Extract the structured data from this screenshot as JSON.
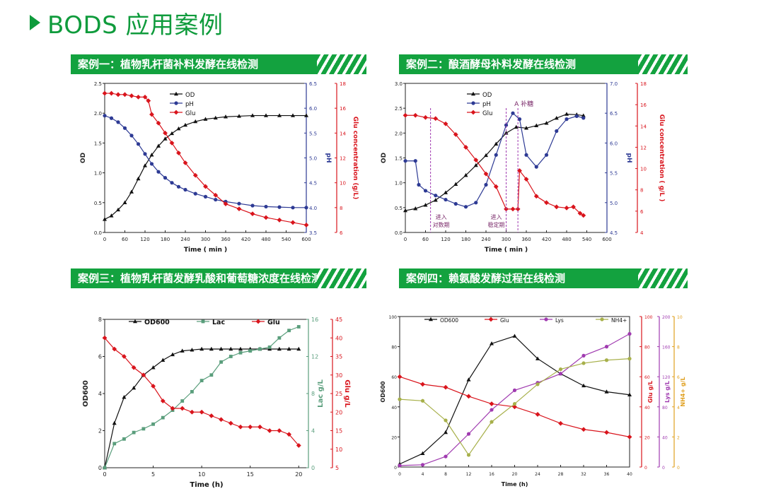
{
  "page_title": "BODS 应用案例",
  "section_titles": [
    "案例一：植物乳杆菌补料发酵在线检测",
    "案例二：酿酒酵母补料发酵在线检测",
    "案例三：植物乳杆菌发酵乳酸和葡萄糖浓度在线检测",
    "案例四：赖氨酸发酵过程在线检测"
  ],
  "colors": {
    "accent": "#13a23f",
    "black": "#111111",
    "blue": "#2d3a94",
    "red": "#d9141c",
    "teal": "#5a9e7c",
    "purple": "#a03bb0",
    "olive": "#a7b04a",
    "orange": "#e0a020"
  },
  "chart_data": [
    {
      "type": "line",
      "title": "案例一：植物乳杆菌补料发酵在线检测",
      "xlabel": "Time ( min )",
      "x_ticks": [
        "0",
        "60",
        "120",
        "180",
        "240",
        "300",
        "360",
        "420",
        "480",
        "540",
        "600"
      ],
      "xlim": [
        0,
        600
      ],
      "axes": [
        {
          "label": "OD",
          "ylim": [
            0,
            2.5
          ],
          "ticks": [
            "0.0",
            "0.5",
            "1.0",
            "1.5",
            "2.0",
            "2.5"
          ]
        },
        {
          "label": "pH",
          "ylim": [
            3.5,
            6.5
          ],
          "ticks": [
            "3.5",
            "4.0",
            "4.5",
            "5.0",
            "5.5",
            "6.0",
            "6.5"
          ]
        },
        {
          "label": "Glu concentration (g/L)",
          "ylim": [
            6,
            18
          ],
          "ticks": [
            "6",
            "8",
            "10",
            "12",
            "14",
            "16",
            "18"
          ]
        }
      ],
      "legend": [
        "OD",
        "pH",
        "Glu"
      ],
      "series": [
        {
          "name": "OD",
          "axis": 0,
          "x": [
            0,
            20,
            40,
            60,
            80,
            100,
            120,
            140,
            160,
            180,
            200,
            220,
            240,
            270,
            300,
            330,
            360,
            400,
            440,
            480,
            520,
            560,
            600
          ],
          "values": [
            0.22,
            0.28,
            0.38,
            0.5,
            0.68,
            0.9,
            1.12,
            1.3,
            1.45,
            1.57,
            1.66,
            1.74,
            1.8,
            1.86,
            1.9,
            1.92,
            1.94,
            1.95,
            1.96,
            1.96,
            1.96,
            1.96,
            1.96
          ]
        },
        {
          "name": "pH",
          "axis": 1,
          "x": [
            0,
            20,
            40,
            60,
            80,
            100,
            120,
            140,
            160,
            180,
            200,
            220,
            240,
            270,
            300,
            330,
            360,
            400,
            440,
            480,
            520,
            560,
            600
          ],
          "values": [
            5.85,
            5.8,
            5.72,
            5.6,
            5.45,
            5.28,
            5.08,
            4.88,
            4.72,
            4.6,
            4.5,
            4.42,
            4.36,
            4.28,
            4.22,
            4.16,
            4.12,
            4.08,
            4.04,
            4.02,
            4.01,
            4.0,
            4.0
          ]
        },
        {
          "name": "Glu",
          "axis": 2,
          "x": [
            0,
            20,
            40,
            60,
            80,
            100,
            120,
            130,
            140,
            160,
            180,
            200,
            220,
            240,
            270,
            300,
            330,
            360,
            400,
            440,
            480,
            520,
            560,
            600
          ],
          "values": [
            17.2,
            17.2,
            17.1,
            17.1,
            17.0,
            16.9,
            16.9,
            16.6,
            15.5,
            14.8,
            14.0,
            13.2,
            12.4,
            11.6,
            10.6,
            9.7,
            9.0,
            8.3,
            7.9,
            7.5,
            7.2,
            7.0,
            6.8,
            6.6
          ]
        }
      ]
    },
    {
      "type": "line",
      "title": "案例二：酿酒酵母补料发酵在线检测",
      "xlabel": "Time ( min )",
      "x_ticks": [
        "0",
        "60",
        "120",
        "180",
        "240",
        "300",
        "360",
        "420",
        "480",
        "540",
        "600"
      ],
      "xlim": [
        0,
        600
      ],
      "axes": [
        {
          "label": "OD",
          "ylim": [
            0,
            3.0
          ],
          "ticks": [
            "0.0",
            "0.5",
            "1.0",
            "1.5",
            "2.0",
            "2.5",
            "3.0"
          ]
        },
        {
          "label": "pH",
          "ylim": [
            4.5,
            7.0
          ],
          "ticks": [
            "4.5",
            "5.0",
            "5.5",
            "6.0",
            "6.5",
            "7.0"
          ]
        },
        {
          "label": "Glu concentration ( g/L )",
          "ylim": [
            4,
            18
          ],
          "ticks": [
            "4",
            "6",
            "8",
            "10",
            "12",
            "14",
            "16",
            "18"
          ]
        }
      ],
      "legend": [
        "OD",
        "pH",
        "Glu"
      ],
      "annotations": [
        "进入\n对数期",
        "进入\n稳定期",
        "A  补糖"
      ],
      "series": [
        {
          "name": "OD",
          "axis": 0,
          "x": [
            0,
            30,
            60,
            90,
            120,
            150,
            180,
            210,
            240,
            270,
            300,
            330,
            360,
            390,
            420,
            450,
            480,
            510,
            530
          ],
          "values": [
            0.44,
            0.48,
            0.55,
            0.65,
            0.8,
            0.97,
            1.15,
            1.35,
            1.55,
            1.78,
            2.0,
            2.12,
            2.1,
            2.15,
            2.2,
            2.3,
            2.38,
            2.37,
            2.35
          ]
        },
        {
          "name": "pH",
          "axis": 1,
          "x": [
            0,
            30,
            40,
            60,
            90,
            120,
            150,
            180,
            210,
            240,
            270,
            300,
            320,
            340,
            360,
            390,
            420,
            450,
            480,
            510,
            530
          ],
          "values": [
            5.7,
            5.7,
            5.3,
            5.2,
            5.12,
            5.05,
            4.98,
            4.93,
            5.0,
            5.3,
            5.8,
            6.3,
            6.5,
            6.4,
            5.8,
            5.6,
            5.8,
            6.2,
            6.4,
            6.45,
            6.42
          ]
        },
        {
          "name": "Glu",
          "axis": 2,
          "x": [
            0,
            30,
            60,
            90,
            120,
            150,
            180,
            210,
            240,
            270,
            300,
            320,
            335,
            340,
            360,
            390,
            420,
            450,
            480,
            500,
            520,
            530
          ],
          "values": [
            15.0,
            15.0,
            14.8,
            14.7,
            14.2,
            13.2,
            12.0,
            10.8,
            9.5,
            8.3,
            6.2,
            6.2,
            6.2,
            9.8,
            9.0,
            7.4,
            6.8,
            6.4,
            6.3,
            6.4,
            5.8,
            5.6
          ]
        }
      ]
    },
    {
      "type": "line",
      "title": "案例三：植物乳杆菌发酵乳酸和葡萄糖浓度在线检测",
      "xlabel": "Time (h)",
      "x_ticks": [
        "0",
        "5",
        "10",
        "15",
        "20"
      ],
      "xlim": [
        0,
        21
      ],
      "axes": [
        {
          "label": "OD600",
          "ylim": [
            0,
            8
          ],
          "ticks": [
            "0",
            "2",
            "4",
            "6",
            "8"
          ]
        },
        {
          "label": "Lac g/L",
          "ylim": [
            0,
            16
          ],
          "ticks": [
            "0",
            "4",
            "8",
            "12",
            "16"
          ]
        },
        {
          "label": "Glu g/L",
          "ylim": [
            5,
            45
          ],
          "ticks": [
            "5",
            "10",
            "15",
            "20",
            "25",
            "30",
            "35",
            "40",
            "45"
          ]
        }
      ],
      "legend": [
        "OD600",
        "Lac",
        "Glu"
      ],
      "series": [
        {
          "name": "OD600",
          "axis": 0,
          "x": [
            0,
            1,
            2,
            3,
            4,
            5,
            6,
            7,
            8,
            9,
            10,
            11,
            12,
            13,
            14,
            15,
            16,
            17,
            18,
            19,
            20
          ],
          "values": [
            0,
            2.4,
            3.8,
            4.3,
            5.0,
            5.4,
            5.8,
            6.1,
            6.3,
            6.35,
            6.4,
            6.4,
            6.4,
            6.4,
            6.4,
            6.4,
            6.4,
            6.4,
            6.4,
            6.4,
            6.4
          ]
        },
        {
          "name": "Lac",
          "axis": 1,
          "x": [
            0,
            1,
            2,
            3,
            4,
            5,
            6,
            7,
            8,
            9,
            10,
            11,
            12,
            13,
            14,
            15,
            16,
            17,
            18,
            19,
            20
          ],
          "values": [
            0,
            2.6,
            3.1,
            3.8,
            4.2,
            4.7,
            5.4,
            6.2,
            7.2,
            8.2,
            9.4,
            10.0,
            11.4,
            12.0,
            12.4,
            12.6,
            12.8,
            13.0,
            14.0,
            14.8,
            15.2
          ]
        },
        {
          "name": "Glu",
          "axis": 2,
          "x": [
            0,
            1,
            2,
            3,
            4,
            5,
            6,
            7,
            8,
            9,
            10,
            11,
            12,
            13,
            14,
            15,
            16,
            17,
            18,
            19,
            20
          ],
          "values": [
            40,
            37,
            35,
            32,
            30,
            27,
            23,
            21,
            21,
            20,
            20,
            19,
            18,
            17,
            16,
            16,
            16,
            15,
            15,
            14,
            11
          ]
        }
      ]
    },
    {
      "type": "line",
      "title": "案例四：赖氨酸发酵过程在线检测",
      "xlabel": "Time  (h)",
      "x_ticks": [
        "0",
        "4",
        "8",
        "12",
        "16",
        "20",
        "24",
        "28",
        "32",
        "36",
        "40"
      ],
      "xlim": [
        0,
        40
      ],
      "axes": [
        {
          "label": "OD600",
          "ylim": [
            0,
            100
          ],
          "ticks": [
            "0",
            "20",
            "40",
            "60",
            "80",
            "100"
          ]
        },
        {
          "label": "Glu g/L",
          "ylim": [
            0,
            100
          ],
          "ticks": [
            "0",
            "20",
            "40",
            "60",
            "80",
            "100"
          ]
        },
        {
          "label": "Lys g/L",
          "ylim": [
            0,
            200
          ],
          "ticks": [
            "0",
            "40",
            "80",
            "120",
            "160",
            "200"
          ]
        },
        {
          "label": "NH4+ g/L",
          "ylim": [
            0,
            10
          ],
          "ticks": [
            "0",
            "2",
            "4",
            "6",
            "8",
            "10"
          ]
        }
      ],
      "legend": [
        "OD600",
        "Glu",
        "Lys",
        "NH4+"
      ],
      "series": [
        {
          "name": "OD600",
          "axis": 0,
          "x": [
            0,
            4,
            8,
            12,
            16,
            20,
            24,
            28,
            32,
            36,
            40
          ],
          "values": [
            2,
            9,
            23,
            58,
            82,
            87,
            72,
            62,
            54,
            50,
            48
          ]
        },
        {
          "name": "Glu",
          "axis": 1,
          "x": [
            0,
            4,
            8,
            12,
            16,
            20,
            24,
            28,
            32,
            36,
            40
          ],
          "values": [
            60,
            55,
            53,
            47,
            42,
            40,
            35,
            29,
            25,
            23,
            20
          ]
        },
        {
          "name": "Lys",
          "axis": 2,
          "x": [
            0,
            4,
            8,
            12,
            16,
            20,
            24,
            28,
            32,
            36,
            40
          ],
          "values": [
            2,
            3,
            14,
            44,
            76,
            102,
            112,
            124,
            148,
            160,
            177
          ]
        },
        {
          "name": "NH4+",
          "axis": 3,
          "x": [
            0,
            4,
            8,
            12,
            16,
            20,
            24,
            28,
            32,
            36,
            40
          ],
          "values": [
            4.5,
            4.4,
            3.1,
            0.8,
            3.0,
            4.2,
            5.5,
            6.5,
            6.9,
            7.1,
            7.2
          ]
        }
      ]
    }
  ]
}
